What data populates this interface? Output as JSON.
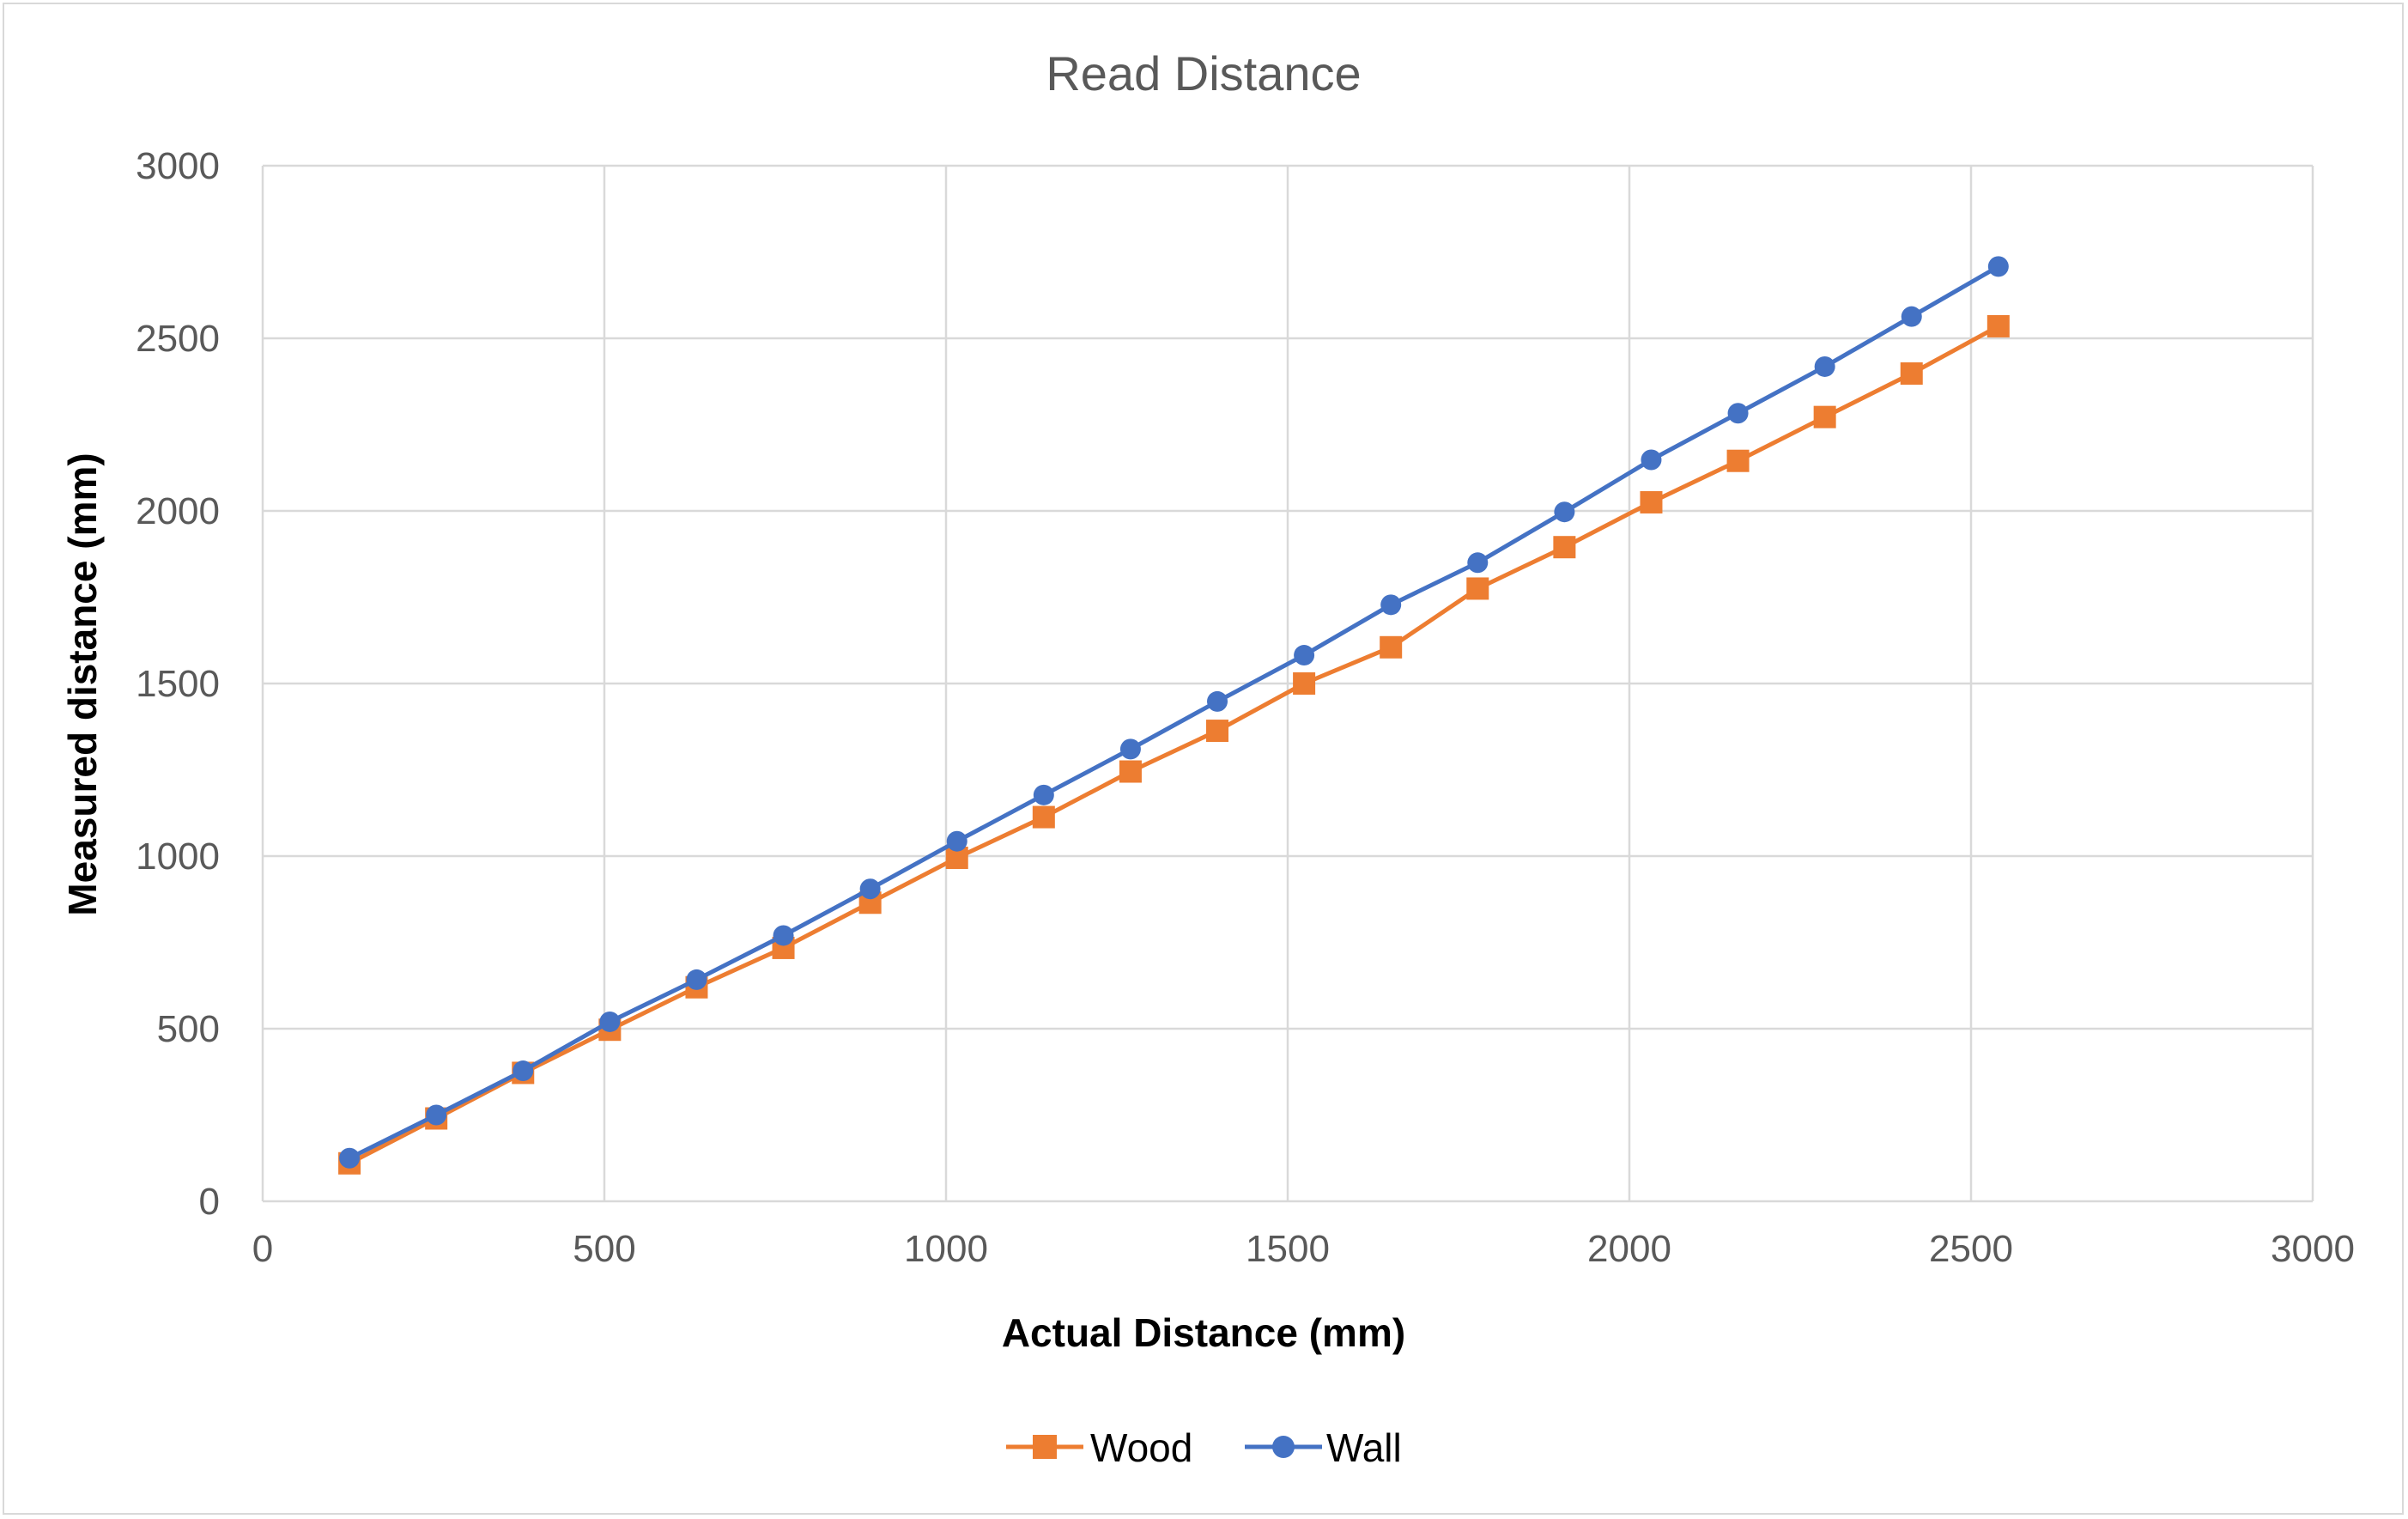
{
  "chart_data": {
    "type": "line",
    "title": "Read Distance",
    "xlabel": "Actual Distance (mm)",
    "ylabel": "Measured distance (mm)",
    "xlim": [
      0,
      3000
    ],
    "ylim": [
      0,
      3000
    ],
    "xticks": [
      0,
      500,
      1000,
      1500,
      2000,
      2500,
      3000
    ],
    "yticks": [
      0,
      500,
      1000,
      1500,
      2000,
      2500,
      3000
    ],
    "grid": true,
    "legend_position": "bottom",
    "x": [
      127,
      254,
      381,
      508,
      635,
      762,
      889,
      1016,
      1143,
      1270,
      1397,
      1524,
      1651,
      1778,
      1905,
      2032,
      2159,
      2286,
      2413,
      2540
    ],
    "series": [
      {
        "name": "Wood",
        "color": "#ed7d31",
        "marker": "square",
        "values": [
          110,
          240,
          372,
          497,
          620,
          734,
          865,
          995,
          1113,
          1245,
          1363,
          1500,
          1605,
          1775,
          1895,
          2025,
          2145,
          2272,
          2398,
          2535
        ]
      },
      {
        "name": "Wall",
        "color": "#4472c4",
        "marker": "circle",
        "values": [
          125,
          250,
          378,
          520,
          642,
          770,
          905,
          1043,
          1177,
          1310,
          1448,
          1582,
          1728,
          1850,
          1997,
          2148,
          2283,
          2418,
          2563,
          2708
        ]
      }
    ]
  }
}
